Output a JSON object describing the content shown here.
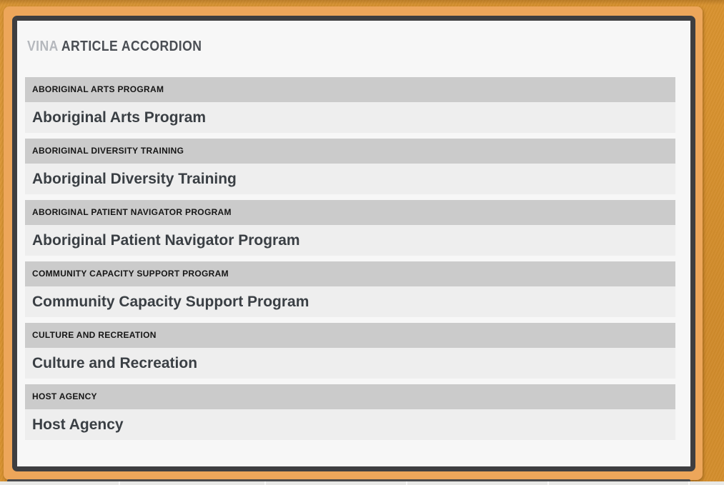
{
  "window": {
    "title_prefix": "VINA",
    "title_main": "ARTICLE ACCORDION"
  },
  "accordion": {
    "items": [
      {
        "header": "ABORIGINAL ARTS PROGRAM",
        "content": "Aboriginal Arts Program"
      },
      {
        "header": "ABORIGINAL DIVERSITY TRAINING",
        "content": "Aboriginal Diversity Training"
      },
      {
        "header": "ABORIGINAL PATIENT NAVIGATOR PROGRAM",
        "content": "Aboriginal Patient Navigator Program"
      },
      {
        "header": "COMMUNITY CAPACITY SUPPORT PROGRAM",
        "content": "Community Capacity Support Program"
      },
      {
        "header": "CULTURE AND RECREATION",
        "content": "Culture and Recreation"
      },
      {
        "header": "HOST AGENCY",
        "content": "Host Agency"
      }
    ]
  },
  "colors": {
    "background_orange": "#d8922f",
    "frame_orange": "#eda65a",
    "panel_border": "#3e3e40",
    "panel_bg": "#f7f7f7",
    "header_bar_bg": "#cbcbcb",
    "header_text": "#161616",
    "content_bg": "#eeeeee",
    "content_text": "#3a3f44",
    "title_prefix_color": "#b5b8bd",
    "title_main_color": "#4a4e54",
    "peek_bar": "#4a4a4c",
    "peek_strip": "#e8e8e6"
  }
}
